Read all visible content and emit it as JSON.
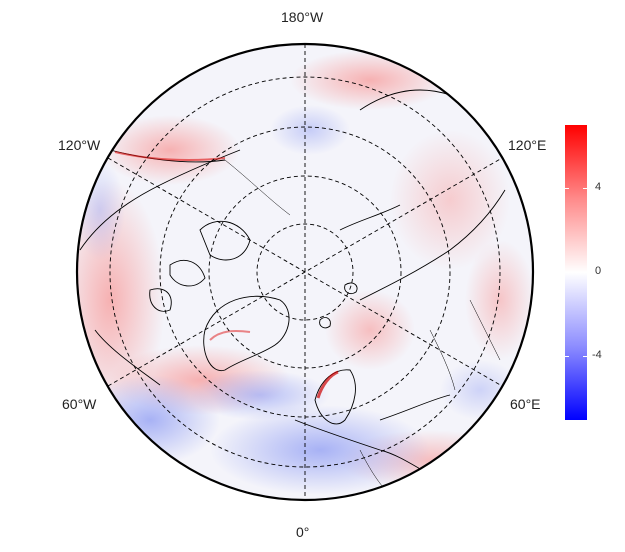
{
  "map": {
    "projection": "north polar stereographic",
    "longitude_labels": {
      "top": "180°W",
      "upper_left": "120°W",
      "upper_right": "120°E",
      "lower_left": "60°W",
      "lower_right": "60°E",
      "bottom": "0°"
    },
    "graticule": "dashed",
    "coastlines": true,
    "country_borders": true
  },
  "colorbar": {
    "tick_labels": [
      "4",
      "0",
      "-4"
    ],
    "colors": {
      "max": "#ff0000",
      "mid": "#ffffff",
      "min": "#0000ff"
    }
  }
}
